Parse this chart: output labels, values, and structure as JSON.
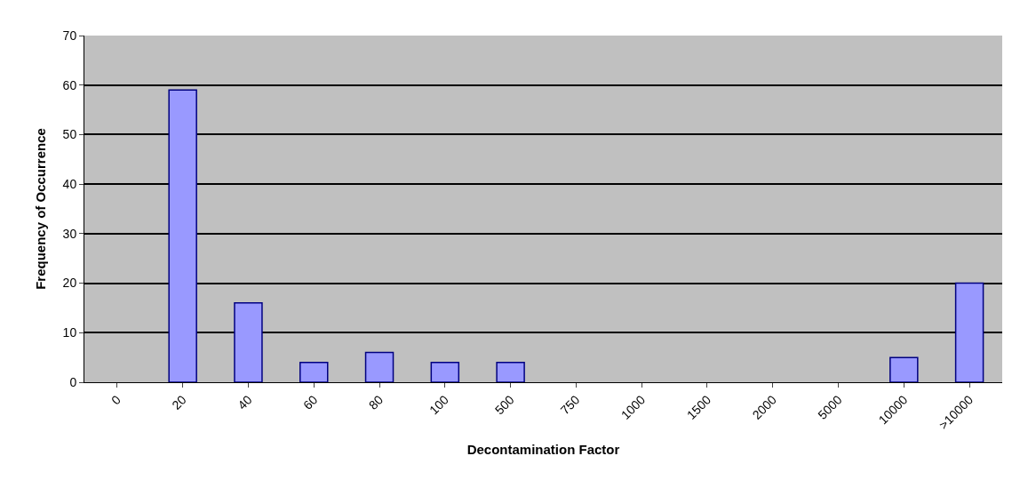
{
  "chart_data": {
    "type": "bar",
    "xlabel": "Decontamination Factor",
    "ylabel": "Frequency of Occurrence",
    "categories": [
      "0",
      "20",
      "40",
      "60",
      "80",
      "100",
      "500",
      "750",
      "1000",
      "1500",
      "2000",
      "5000",
      "10000",
      ">10000"
    ],
    "values": [
      0,
      59,
      16,
      4,
      6,
      4,
      4,
      0,
      0,
      0,
      0,
      0,
      5,
      20
    ],
    "color": "#9999ff",
    "ylim": [
      0,
      70
    ],
    "yticks": [
      0,
      10,
      20,
      30,
      40,
      50,
      60,
      70
    ],
    "grid": "y",
    "legend": false
  }
}
